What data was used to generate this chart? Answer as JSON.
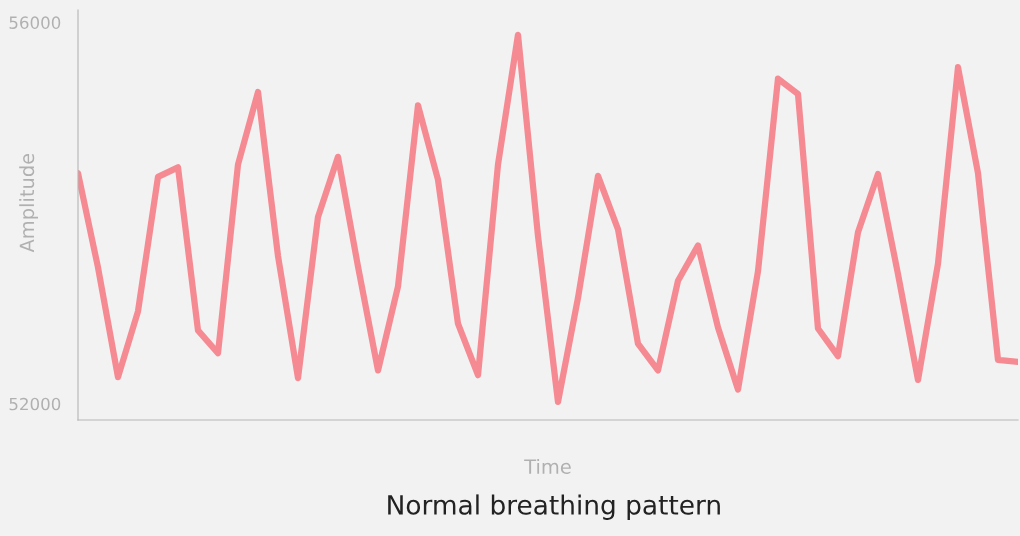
{
  "chart_data": {
    "type": "line",
    "title": "Normal breathing pattern",
    "xlabel": "Time",
    "ylabel": "Amplitude",
    "categories": [
      null,
      null,
      null,
      null,
      null,
      null,
      null,
      null,
      null,
      null,
      null,
      null,
      null,
      null,
      null,
      null,
      null,
      null,
      null,
      null,
      null,
      null,
      null,
      null,
      null,
      null,
      null,
      null,
      null,
      null,
      null,
      null,
      null,
      null,
      null,
      null,
      null,
      null,
      null,
      null,
      null,
      null,
      null,
      null,
      null,
      null,
      null,
      null
    ],
    "series": [
      {
        "color": "#f58a92",
        "values": [
          54420,
          53430,
          52280,
          52970,
          54380,
          54480,
          52770,
          52530,
          54510,
          55270,
          53550,
          52270,
          53960,
          54590,
          53440,
          52350,
          53230,
          55130,
          54350,
          52840,
          52300,
          54510,
          55870,
          53760,
          52020,
          53110,
          54390,
          53830,
          52630,
          52350,
          53290,
          53660,
          52800,
          52150,
          53390,
          55410,
          55250,
          52790,
          52500,
          53800,
          54410,
          53360,
          52250,
          53470,
          55530,
          54420,
          52460,
          52440
        ]
      }
    ],
    "ylim": [
      51830,
      56130
    ],
    "yticks": [
      52000,
      56000
    ],
    "grid": false,
    "legend": false,
    "marker": "none",
    "line_style": "solid",
    "tick_labels": "y"
  }
}
